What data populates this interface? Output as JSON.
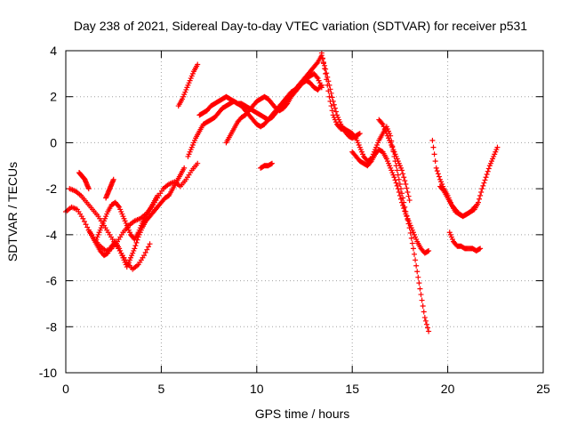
{
  "chart_data": {
    "type": "scatter",
    "title": "Day 238 of 2021, Sidereal Day-to-day VTEC variation (SDTVAR) for receiver p531",
    "xlabel": "GPS time / hours",
    "ylabel": "SDTVAR / TECUs",
    "xlim": [
      0,
      25
    ],
    "ylim": [
      -10,
      4
    ],
    "xticks": [
      0,
      5,
      10,
      15,
      20,
      25
    ],
    "yticks": [
      -10,
      -8,
      -6,
      -4,
      -2,
      0,
      2,
      4
    ],
    "xtick_labels": [
      "0",
      "5",
      "10",
      "15",
      "20",
      "25"
    ],
    "ytick_labels": [
      "-10",
      "-8",
      "-6",
      "-4",
      "-2",
      "0",
      "2",
      "4"
    ],
    "grid": true,
    "marker": "+",
    "color": "#ff0000",
    "series": [
      {
        "x": [
          0,
          0.3,
          0.6,
          0.9,
          1.2,
          1.5,
          1.8,
          2.1,
          2.4,
          2.7,
          3.0,
          3.3,
          3.6,
          3.9,
          4.2,
          4.5,
          4.8,
          5.1,
          5.4,
          5.7,
          6.0,
          6.3,
          6.6,
          6.9
        ],
        "y": [
          -3.0,
          -2.8,
          -2.9,
          -3.3,
          -3.8,
          -4.2,
          -4.5,
          -4.7,
          -4.6,
          -4.3,
          -3.9,
          -3.6,
          -3.4,
          -3.3,
          -3.1,
          -2.8,
          -2.4,
          -2.0,
          -1.8,
          -1.7,
          -1.9,
          -1.6,
          -1.2,
          -0.9
        ]
      },
      {
        "x": [
          0.2,
          0.5,
          0.8,
          1.1,
          1.4,
          1.7,
          2.0,
          2.3,
          2.6,
          2.9,
          3.2,
          3.5,
          3.8,
          4.1,
          4.4
        ],
        "y": [
          -2.0,
          -2.1,
          -2.3,
          -2.6,
          -2.9,
          -3.2,
          -3.6,
          -4.0,
          -4.4,
          -4.8,
          -5.2,
          -5.5,
          -5.3,
          -4.9,
          -4.4
        ]
      },
      {
        "x": [
          1.2,
          1.4,
          1.6,
          1.8,
          2.0,
          2.2,
          2.4,
          2.6,
          2.8,
          3.0,
          3.2,
          3.4,
          3.6,
          3.8,
          4.0,
          4.2,
          4.4,
          4.6,
          4.8,
          5.0,
          5.2,
          5.4,
          5.6,
          5.8,
          6.0,
          6.2
        ],
        "y": [
          -3.8,
          -4.1,
          -4.4,
          -4.7,
          -4.9,
          -4.8,
          -4.5,
          -4.3,
          -4.6,
          -5.0,
          -5.4,
          -5.0,
          -4.6,
          -4.1,
          -3.7,
          -3.4,
          -3.2,
          -3.0,
          -2.8,
          -2.6,
          -2.4,
          -2.3,
          -2.0,
          -1.7,
          -1.4,
          -1.1
        ]
      },
      {
        "x": [
          1.6,
          1.8,
          2.0,
          2.2,
          2.4,
          2.6,
          2.8,
          3.0,
          3.2,
          3.4,
          3.6,
          3.8,
          4.0,
          4.2,
          4.4,
          4.6,
          4.8
        ],
        "y": [
          -4.2,
          -3.8,
          -3.4,
          -3.0,
          -2.7,
          -2.6,
          -2.8,
          -3.2,
          -3.6,
          -4.0,
          -4.2,
          -3.9,
          -3.5,
          -3.2,
          -2.9,
          -2.6,
          -2.3
        ]
      },
      {
        "x": [
          0.7,
          0.8,
          0.9,
          1.0,
          1.1,
          1.2
        ],
        "y": [
          -1.3,
          -1.4,
          -1.5,
          -1.6,
          -1.8,
          -2.0
        ]
      },
      {
        "x": [
          2.1,
          2.2,
          2.3,
          2.4,
          2.5
        ],
        "y": [
          -2.4,
          -2.2,
          -2.0,
          -1.8,
          -1.6
        ]
      },
      {
        "x": [
          5.9,
          6.1,
          6.3,
          6.5,
          6.7,
          6.9
        ],
        "y": [
          1.6,
          1.9,
          2.3,
          2.7,
          3.1,
          3.4
        ]
      },
      {
        "x": [
          6.4,
          6.6,
          6.8,
          7.0,
          7.2,
          7.4,
          7.6,
          7.8,
          8.0,
          8.2,
          8.4,
          8.6,
          8.8,
          9.0,
          9.2,
          9.4,
          9.6,
          9.8,
          10.0,
          10.2,
          10.4,
          10.6,
          10.8,
          11.0,
          11.2,
          11.4,
          11.6,
          11.8,
          12.0,
          12.2,
          12.4,
          12.6,
          12.8,
          13.0,
          13.2,
          13.4
        ],
        "y": [
          -0.6,
          -0.2,
          0.2,
          0.5,
          0.8,
          0.9,
          1.0,
          1.1,
          1.3,
          1.5,
          1.6,
          1.7,
          1.8,
          1.7,
          1.6,
          1.4,
          1.2,
          1.0,
          0.8,
          0.7,
          0.8,
          1.0,
          1.2,
          1.4,
          1.6,
          1.8,
          2.0,
          2.2,
          2.3,
          2.5,
          2.6,
          2.7,
          2.6,
          2.4,
          2.3,
          2.5
        ]
      },
      {
        "x": [
          7.0,
          7.2,
          7.4,
          7.6,
          7.8,
          8.0,
          8.2,
          8.4,
          8.6,
          8.8,
          9.0,
          9.2,
          9.4,
          9.6,
          9.8,
          10.0,
          10.2,
          10.4,
          10.6,
          10.8,
          11.0,
          11.2,
          11.4,
          11.6,
          11.8,
          12.0,
          12.2,
          12.4,
          12.6,
          12.8,
          13.0,
          13.2,
          13.4,
          13.6,
          13.8,
          14.0,
          14.2,
          14.4,
          14.6,
          14.8,
          15.0,
          15.2,
          15.4
        ],
        "y": [
          1.2,
          1.3,
          1.4,
          1.6,
          1.7,
          1.8,
          1.9,
          2.0,
          1.9,
          1.8,
          1.7,
          1.7,
          1.6,
          1.5,
          1.4,
          1.3,
          1.2,
          1.1,
          1.0,
          1.1,
          1.3,
          1.5,
          1.7,
          1.9,
          2.1,
          2.3,
          2.5,
          2.7,
          2.9,
          3.1,
          3.3,
          3.5,
          3.8,
          3.2,
          2.5,
          1.8,
          1.2,
          0.8,
          0.5,
          0.3,
          0.2,
          0.3,
          0.4
        ]
      },
      {
        "x": [
          8.4,
          8.6,
          8.8,
          9.0,
          9.2,
          9.4,
          9.6,
          9.8,
          10.0,
          10.2,
          10.4,
          10.6,
          10.8,
          11.0,
          11.2,
          11.4,
          11.6,
          11.8,
          12.0,
          12.2,
          12.4,
          12.6,
          12.8,
          13.0,
          13.2,
          13.4
        ],
        "y": [
          0.0,
          0.3,
          0.6,
          0.9,
          1.1,
          1.2,
          1.4,
          1.6,
          1.8,
          1.9,
          2.0,
          1.9,
          1.7,
          1.5,
          1.4,
          1.5,
          1.7,
          2.0,
          2.2,
          2.4,
          2.6,
          2.8,
          2.9,
          3.0,
          2.8,
          2.4
        ]
      },
      {
        "x": [
          10.2,
          10.4,
          10.6,
          10.8
        ],
        "y": [
          -1.1,
          -1.0,
          -1.0,
          -0.9
        ]
      },
      {
        "x": [
          13.4,
          13.6,
          13.8,
          14.0,
          14.2,
          14.4,
          14.6,
          14.8,
          15.0,
          15.2,
          15.4,
          15.6,
          15.8,
          16.0,
          16.2,
          16.4,
          16.6,
          16.8,
          17.0,
          17.2,
          17.4,
          17.6,
          17.8,
          18.0,
          18.2,
          18.4,
          18.6,
          18.8,
          19.0
        ],
        "y": [
          3.9,
          3.0,
          2.0,
          1.2,
          0.8,
          0.6,
          0.6,
          0.5,
          0.4,
          0.2,
          -0.2,
          -0.6,
          -0.8,
          -0.7,
          -0.3,
          0.1,
          0.4,
          0.7,
          0.3,
          -0.6,
          -1.4,
          -2.2,
          -3.0,
          -3.7,
          -4.6,
          -5.6,
          -6.6,
          -7.6,
          -8.2
        ]
      },
      {
        "x": [
          15.0,
          15.2,
          15.4,
          15.6,
          15.8,
          16.0,
          16.2,
          16.4,
          16.6,
          16.8,
          17.0,
          17.2,
          17.4,
          17.6,
          17.8,
          18.0,
          18.2,
          18.4,
          18.6,
          18.8,
          19.0
        ],
        "y": [
          -0.4,
          -0.6,
          -0.8,
          -0.9,
          -1.0,
          -0.8,
          -0.5,
          -0.3,
          -0.4,
          -0.7,
          -1.1,
          -1.5,
          -2.0,
          -2.6,
          -3.1,
          -3.5,
          -3.9,
          -4.3,
          -4.6,
          -4.8,
          -4.7
        ]
      },
      {
        "x": [
          16.4,
          16.6,
          16.8,
          17.0,
          17.2,
          17.4,
          17.6,
          17.8,
          18.0
        ],
        "y": [
          1.0,
          0.8,
          0.4,
          0.0,
          -0.4,
          -0.8,
          -1.2,
          -1.8,
          -2.5
        ]
      },
      {
        "x": [
          19.2,
          19.4,
          19.6,
          19.8,
          20.0,
          20.2,
          20.4,
          20.6,
          20.8,
          21.0,
          21.2,
          21.4,
          21.6,
          21.8,
          22.0,
          22.2,
          22.4,
          22.6
        ],
        "y": [
          0.1,
          -1.1,
          -1.6,
          -2.0,
          -2.3,
          -2.7,
          -3.0,
          -3.1,
          -3.2,
          -3.1,
          -3.0,
          -2.9,
          -2.6,
          -2.0,
          -1.5,
          -1.0,
          -0.6,
          -0.2
        ]
      },
      {
        "x": [
          19.6,
          19.8,
          20.0,
          20.2,
          20.4,
          20.6,
          20.8,
          21.0,
          21.2,
          21.4
        ],
        "y": [
          -1.9,
          -2.1,
          -2.4,
          -2.7,
          -2.9,
          -3.1,
          -3.2,
          -3.1,
          -3.0,
          -2.8
        ]
      },
      {
        "x": [
          20.1,
          20.3,
          20.5,
          20.7,
          20.9,
          21.1,
          21.3,
          21.5,
          21.7
        ],
        "y": [
          -3.9,
          -4.3,
          -4.5,
          -4.5,
          -4.6,
          -4.6,
          -4.6,
          -4.7,
          -4.6
        ]
      }
    ]
  }
}
